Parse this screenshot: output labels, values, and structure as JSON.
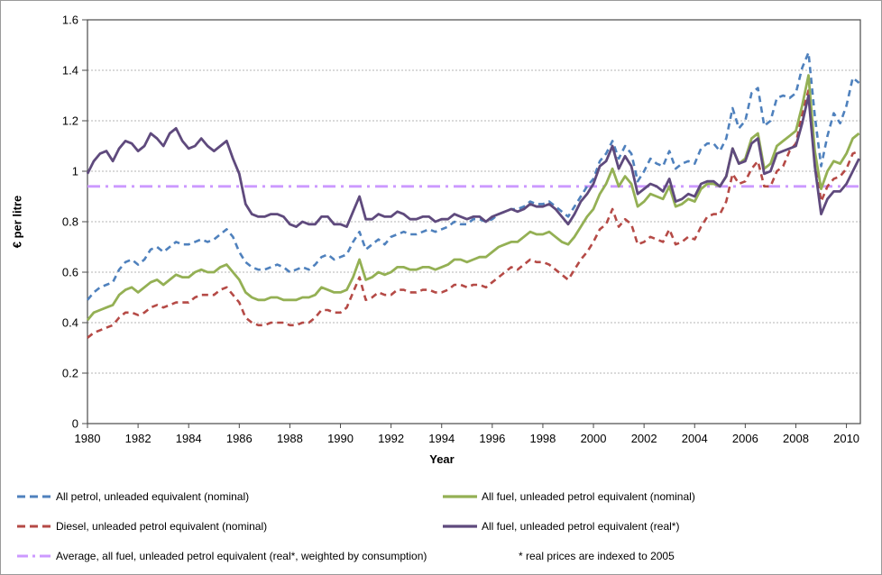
{
  "figure": {
    "y_axis_title": "€ per litre",
    "x_axis_title": "Year",
    "note": "* real prices are indexed to 2005"
  },
  "chart_data": {
    "type": "line",
    "title": "",
    "xlabel": "Year",
    "ylabel": "€ per litre",
    "xlim": [
      1980,
      2010.55
    ],
    "ylim": [
      0,
      1.6
    ],
    "x_start": 1980,
    "x_step": 0.25,
    "grid": "horizontal",
    "legend_position": "bottom",
    "x_ticks": [
      "1980",
      "1982",
      "1984",
      "1986",
      "1988",
      "1990",
      "1992",
      "1994",
      "1996",
      "1998",
      "2000",
      "2002",
      "2004",
      "2006",
      "2008",
      "2010"
    ],
    "y_ticks": [
      "0",
      "0.2",
      "0.4",
      "0.6",
      "0.8",
      "1",
      "1.2",
      "1.4",
      "1.6"
    ],
    "note": "* real prices are indexed to 2005",
    "colors": {
      "petrol_nominal": "#4F81BD",
      "allfuel_nominal": "#94B054",
      "diesel_nominal": "#B54A46",
      "allfuel_real": "#5F4A7D",
      "average_real": "#CC99FF",
      "gridline": "#b5b5b5",
      "axis": "#4a4a4a"
    },
    "series": [
      {
        "name": "All petrol, unleaded equivalent (nominal)",
        "color": "#4F81BD",
        "style": "dashed",
        "values": [
          0.49,
          0.52,
          0.54,
          0.55,
          0.56,
          0.61,
          0.64,
          0.65,
          0.63,
          0.65,
          0.69,
          0.7,
          0.68,
          0.7,
          0.72,
          0.71,
          0.71,
          0.72,
          0.73,
          0.72,
          0.73,
          0.75,
          0.77,
          0.74,
          0.68,
          0.64,
          0.62,
          0.61,
          0.61,
          0.62,
          0.63,
          0.62,
          0.6,
          0.61,
          0.62,
          0.61,
          0.63,
          0.66,
          0.67,
          0.65,
          0.66,
          0.67,
          0.72,
          0.76,
          0.69,
          0.71,
          0.73,
          0.71,
          0.74,
          0.75,
          0.76,
          0.75,
          0.75,
          0.76,
          0.77,
          0.76,
          0.77,
          0.78,
          0.8,
          0.79,
          0.79,
          0.81,
          0.81,
          0.8,
          0.81,
          0.83,
          0.84,
          0.85,
          0.85,
          0.86,
          0.88,
          0.87,
          0.87,
          0.88,
          0.86,
          0.84,
          0.82,
          0.86,
          0.9,
          0.94,
          0.97,
          1.04,
          1.07,
          1.12,
          1.05,
          1.1,
          1.07,
          0.96,
          1.0,
          1.05,
          1.03,
          1.02,
          1.08,
          1.01,
          1.03,
          1.04,
          1.03,
          1.09,
          1.11,
          1.11,
          1.08,
          1.13,
          1.25,
          1.17,
          1.2,
          1.31,
          1.33,
          1.18,
          1.2,
          1.29,
          1.3,
          1.29,
          1.31,
          1.41,
          1.47,
          1.22,
          1.02,
          1.14,
          1.23,
          1.19,
          1.26,
          1.37,
          1.35
        ]
      },
      {
        "name": "All fuel, unleaded petrol equivalent (nominal)",
        "color": "#94B054",
        "style": "solid",
        "values": [
          0.41,
          0.44,
          0.45,
          0.46,
          0.47,
          0.51,
          0.53,
          0.54,
          0.52,
          0.54,
          0.56,
          0.57,
          0.55,
          0.57,
          0.59,
          0.58,
          0.58,
          0.6,
          0.61,
          0.6,
          0.6,
          0.62,
          0.63,
          0.6,
          0.57,
          0.52,
          0.5,
          0.49,
          0.49,
          0.5,
          0.5,
          0.49,
          0.49,
          0.49,
          0.5,
          0.5,
          0.51,
          0.54,
          0.53,
          0.52,
          0.52,
          0.53,
          0.58,
          0.65,
          0.57,
          0.58,
          0.6,
          0.59,
          0.6,
          0.62,
          0.62,
          0.61,
          0.61,
          0.62,
          0.62,
          0.61,
          0.62,
          0.63,
          0.65,
          0.65,
          0.64,
          0.65,
          0.66,
          0.66,
          0.68,
          0.7,
          0.71,
          0.72,
          0.72,
          0.74,
          0.76,
          0.75,
          0.75,
          0.76,
          0.74,
          0.72,
          0.71,
          0.74,
          0.78,
          0.82,
          0.85,
          0.91,
          0.95,
          1.01,
          0.94,
          0.98,
          0.95,
          0.86,
          0.88,
          0.91,
          0.9,
          0.89,
          0.94,
          0.86,
          0.87,
          0.89,
          0.88,
          0.93,
          0.95,
          0.95,
          0.94,
          0.98,
          1.09,
          1.03,
          1.05,
          1.13,
          1.15,
          1.01,
          1.03,
          1.1,
          1.12,
          1.14,
          1.16,
          1.26,
          1.38,
          1.08,
          0.93,
          1.0,
          1.04,
          1.03,
          1.07,
          1.13,
          1.15
        ]
      },
      {
        "name": "Diesel, unleaded petrol equivalent (nominal)",
        "color": "#B54A46",
        "style": "dashed",
        "values": [
          0.34,
          0.36,
          0.37,
          0.38,
          0.39,
          0.42,
          0.44,
          0.44,
          0.43,
          0.44,
          0.46,
          0.47,
          0.46,
          0.47,
          0.48,
          0.48,
          0.48,
          0.5,
          0.51,
          0.51,
          0.51,
          0.53,
          0.54,
          0.51,
          0.48,
          0.42,
          0.4,
          0.39,
          0.39,
          0.4,
          0.4,
          0.4,
          0.39,
          0.39,
          0.4,
          0.4,
          0.42,
          0.45,
          0.45,
          0.44,
          0.44,
          0.46,
          0.52,
          0.58,
          0.49,
          0.5,
          0.52,
          0.51,
          0.51,
          0.53,
          0.53,
          0.52,
          0.52,
          0.53,
          0.53,
          0.52,
          0.52,
          0.53,
          0.55,
          0.55,
          0.54,
          0.55,
          0.55,
          0.54,
          0.56,
          0.58,
          0.6,
          0.62,
          0.61,
          0.63,
          0.65,
          0.64,
          0.64,
          0.63,
          0.61,
          0.59,
          0.57,
          0.61,
          0.65,
          0.68,
          0.72,
          0.77,
          0.79,
          0.85,
          0.78,
          0.81,
          0.79,
          0.71,
          0.72,
          0.74,
          0.73,
          0.72,
          0.77,
          0.71,
          0.72,
          0.74,
          0.73,
          0.78,
          0.82,
          0.83,
          0.83,
          0.88,
          0.99,
          0.95,
          0.96,
          1.01,
          1.04,
          0.94,
          0.94,
          1.0,
          1.02,
          1.08,
          1.11,
          1.23,
          1.32,
          1.05,
          0.88,
          0.94,
          0.97,
          0.98,
          1.01,
          1.07,
          1.08
        ]
      },
      {
        "name": "All fuel, unleaded petrol equivalent (real*)",
        "color": "#5F4A7D",
        "style": "solid",
        "values": [
          0.99,
          1.04,
          1.07,
          1.08,
          1.04,
          1.09,
          1.12,
          1.11,
          1.08,
          1.1,
          1.15,
          1.13,
          1.1,
          1.15,
          1.17,
          1.12,
          1.09,
          1.1,
          1.13,
          1.1,
          1.08,
          1.1,
          1.12,
          1.05,
          0.99,
          0.87,
          0.83,
          0.82,
          0.82,
          0.83,
          0.83,
          0.82,
          0.79,
          0.78,
          0.8,
          0.79,
          0.79,
          0.82,
          0.82,
          0.79,
          0.79,
          0.78,
          0.84,
          0.9,
          0.81,
          0.81,
          0.83,
          0.82,
          0.82,
          0.84,
          0.83,
          0.81,
          0.81,
          0.82,
          0.82,
          0.8,
          0.81,
          0.81,
          0.83,
          0.82,
          0.81,
          0.82,
          0.82,
          0.8,
          0.82,
          0.83,
          0.84,
          0.85,
          0.84,
          0.85,
          0.87,
          0.86,
          0.86,
          0.87,
          0.85,
          0.82,
          0.79,
          0.83,
          0.88,
          0.91,
          0.95,
          1.02,
          1.04,
          1.1,
          1.01,
          1.06,
          1.02,
          0.91,
          0.93,
          0.95,
          0.94,
          0.92,
          0.97,
          0.88,
          0.89,
          0.91,
          0.9,
          0.95,
          0.96,
          0.96,
          0.94,
          0.98,
          1.09,
          1.03,
          1.04,
          1.11,
          1.13,
          0.99,
          1.0,
          1.07,
          1.08,
          1.09,
          1.1,
          1.19,
          1.3,
          1.02,
          0.83,
          0.89,
          0.92,
          0.92,
          0.95,
          1.0,
          1.05
        ]
      },
      {
        "name": "Average, all fuel, unleaded petrol equivalent (real*, weighted by consumption)",
        "color": "#CC99FF",
        "style": "dashdot",
        "constant_value": 0.94
      }
    ]
  }
}
